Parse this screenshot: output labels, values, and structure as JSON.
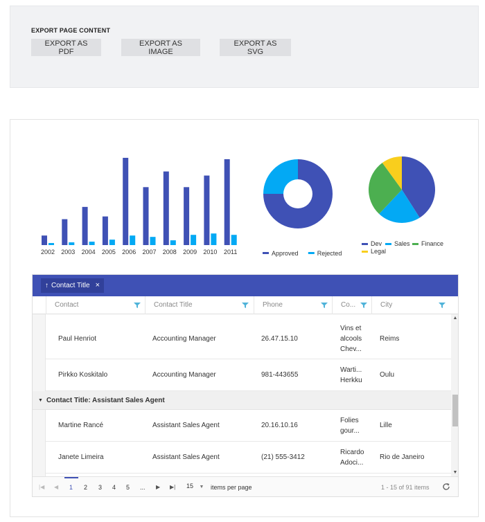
{
  "export": {
    "title": "EXPORT PAGE CONTENT",
    "buttons": {
      "pdf": "EXPORT AS PDF",
      "image": "EXPORT AS IMAGE",
      "svg": "EXPORT AS SVG"
    }
  },
  "chart_data": [
    {
      "type": "bar",
      "categories": [
        "2002",
        "2003",
        "2004",
        "2005",
        "2006",
        "2007",
        "2008",
        "2009",
        "2010",
        "2011"
      ],
      "series": [
        {
          "values": [
            14,
            38,
            56,
            42,
            128,
            85,
            108,
            85,
            102,
            126
          ],
          "color": "#3f51b5"
        },
        {
          "values": [
            3,
            4,
            5,
            8,
            14,
            12,
            7,
            15,
            17,
            15
          ],
          "color": "#03a9f4"
        }
      ],
      "ylim": [
        0,
        130
      ],
      "grid": false
    },
    {
      "type": "donut",
      "slices": [
        {
          "name": "Approved",
          "value": 75,
          "color": "#3f51b5"
        },
        {
          "name": "Rejected",
          "value": 25,
          "color": "#03a9f4"
        }
      ],
      "legend": "bottom"
    },
    {
      "type": "pie",
      "slices": [
        {
          "name": "Dev",
          "value": 41,
          "color": "#3f51b5"
        },
        {
          "name": "Sales",
          "value": 21,
          "color": "#03a9f4"
        },
        {
          "name": "Finance",
          "value": 28,
          "color": "#4caf50"
        },
        {
          "name": "Legal",
          "value": 10,
          "color": "#f9ce1d"
        }
      ],
      "legend": "bottom"
    }
  ],
  "grid": {
    "group_chip": {
      "arrow": "↑",
      "label": "Contact Title",
      "close": "×"
    },
    "columns": [
      "Contact",
      "Contact Title",
      "Phone",
      "Co...",
      "City"
    ],
    "rows": [
      {
        "contact": "Paul Henriot",
        "title": "Accounting Manager",
        "phone": "26.47.15.10",
        "company": [
          "Vins et",
          "alcools",
          "Chev..."
        ],
        "city": "Reims"
      },
      {
        "contact": "Pirkko Koskitalo",
        "title": "Accounting Manager",
        "phone": "981-443655",
        "company": [
          "Warti...",
          "Herkku"
        ],
        "city": "Oulu"
      },
      {
        "contact": "Martine Rancé",
        "title": "Assistant Sales Agent",
        "phone": "20.16.10.16",
        "company": [
          "Folies",
          "gour..."
        ],
        "city": "Lille"
      },
      {
        "contact": "Janete Limeira",
        "title": "Assistant Sales Agent",
        "phone": "(21) 555-3412",
        "company": [
          "Ricardo",
          "Adoci..."
        ],
        "city": "Rio de Janeiro"
      }
    ],
    "group_row_label": "Contact Title: Assistant Sales Agent",
    "pager": {
      "pages": [
        "1",
        "2",
        "3",
        "4",
        "5",
        "..."
      ],
      "current_page": "1",
      "page_size": "15",
      "items_per_page": "items per page",
      "info": "1 - 15 of 91 items"
    }
  }
}
